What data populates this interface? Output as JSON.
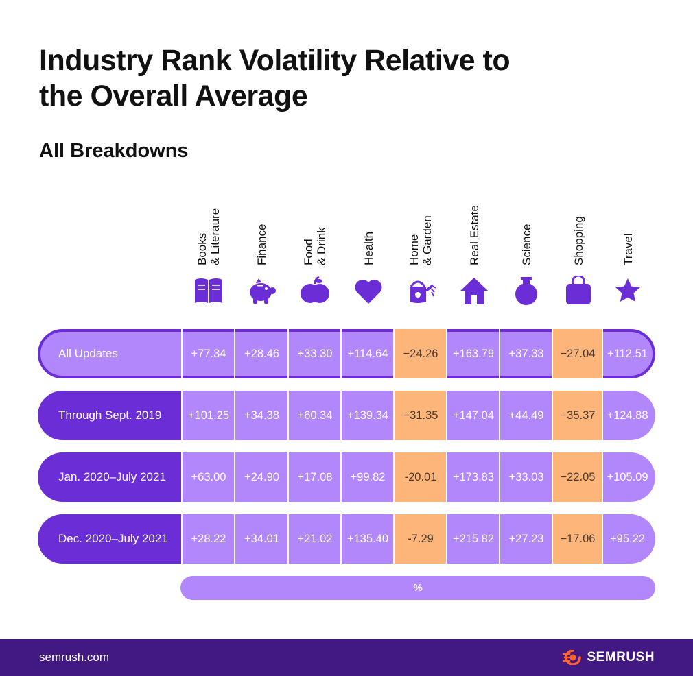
{
  "title": "Industry Rank Volatility Relative to the Overall Average",
  "subtitle": "All Breakdowns",
  "colors": {
    "primary": "#6b2ed6",
    "row_fill": "#b287fc",
    "negative_fill": "#fdb57a",
    "footer_bg": "#421983",
    "logo_orange": "#ff642d"
  },
  "chart_data": {
    "type": "table",
    "title": "Industry Rank Volatility Relative to the Overall Average",
    "subtitle": "All Breakdowns",
    "unit": "%",
    "columns": [
      {
        "label": "Books\n& Literaure",
        "icon": "book-icon"
      },
      {
        "label": "Finance",
        "icon": "piggy-bank-icon"
      },
      {
        "label": "Food\n& Drink",
        "icon": "apple-icon"
      },
      {
        "label": "Health",
        "icon": "heart-icon"
      },
      {
        "label": "Home\n& Garden",
        "icon": "watering-can-icon"
      },
      {
        "label": "Real Estate",
        "icon": "house-icon"
      },
      {
        "label": "Science",
        "icon": "flask-icon"
      },
      {
        "label": "Shopping",
        "icon": "shopping-bag-icon"
      },
      {
        "label": "Travel",
        "icon": "star-icon"
      }
    ],
    "rows": [
      {
        "label": "All Updates",
        "values": [
          "+77.34",
          "+28.46",
          "+33.30",
          "+114.64",
          "−24.26",
          "+163.79",
          "+37.33",
          "−27.04",
          "+112.51"
        ]
      },
      {
        "label": "Through Sept. 2019",
        "values": [
          "+101.25",
          "+34.38",
          "+60.34",
          "+139.34",
          "−31.35",
          "+147.04",
          "+44.49",
          "−35.37",
          "+124.88"
        ]
      },
      {
        "label": "Jan. 2020–July 2021",
        "values": [
          "+63.00",
          "+24.90",
          "+17.08",
          "+99.82",
          "-20.01",
          "+173.83",
          "+33.03",
          "−22.05",
          "+105.09"
        ]
      },
      {
        "label": "Dec. 2020–July 2021",
        "values": [
          "+28.22",
          "+34.01",
          "+21.02",
          "+135.40",
          "-7.29",
          "+215.82",
          "+27.23",
          "−17.06",
          "+95.22"
        ]
      }
    ]
  },
  "footer": {
    "url": "semrush.com",
    "logo_text": "SEMRUSH"
  }
}
